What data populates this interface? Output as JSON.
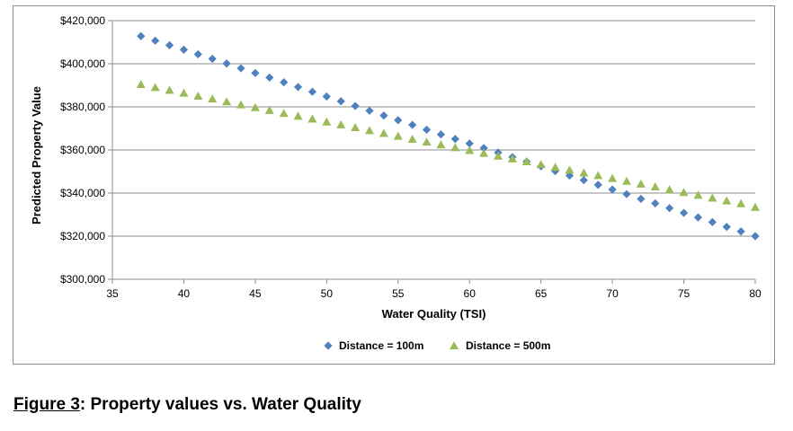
{
  "chart_data": {
    "type": "scatter",
    "title": "",
    "xlabel": "Water Quality (TSI)",
    "ylabel": "Predicted Property Value",
    "xlim": [
      35,
      80
    ],
    "ylim": [
      300000,
      420000
    ],
    "x_ticks": [
      "35",
      "40",
      "45",
      "50",
      "55",
      "60",
      "65",
      "70",
      "75",
      "80"
    ],
    "y_ticks": [
      "$300,000",
      "$320,000",
      "$340,000",
      "$360,000",
      "$380,000",
      "$400,000",
      "$420,000"
    ],
    "grid": "horizontal",
    "legend_position": "bottom",
    "x": [
      37,
      38,
      39,
      40,
      41,
      42,
      43,
      44,
      45,
      46,
      47,
      48,
      49,
      50,
      51,
      52,
      53,
      54,
      55,
      56,
      57,
      58,
      59,
      60,
      61,
      62,
      63,
      64,
      65,
      66,
      67,
      68,
      69,
      70,
      71,
      72,
      73,
      74,
      75,
      76,
      77,
      78,
      79,
      80
    ],
    "series": [
      {
        "name": "Distance = 100m",
        "marker": "diamond",
        "color": "#4f81bd",
        "values": [
          412800,
          410700,
          408600,
          406500,
          404400,
          402300,
          400100,
          397900,
          395700,
          393600,
          391400,
          389200,
          387000,
          384800,
          382600,
          380400,
          378200,
          376000,
          373800,
          371600,
          369400,
          367200,
          365100,
          363000,
          360900,
          358800,
          356700,
          354600,
          352400,
          350200,
          348100,
          346000,
          343800,
          341600,
          339500,
          337300,
          335200,
          333000,
          330800,
          328700,
          326500,
          324300,
          322200,
          320000
        ]
      },
      {
        "name": "Distance = 500m",
        "marker": "triangle",
        "color": "#9bbb59",
        "values": [
          390400,
          389000,
          387700,
          386400,
          385000,
          383700,
          382400,
          381000,
          379700,
          378400,
          377000,
          375700,
          374400,
          373000,
          371700,
          370400,
          369000,
          367700,
          366400,
          365000,
          363700,
          362400,
          361100,
          359800,
          358500,
          357200,
          355900,
          354600,
          353300,
          352000,
          350700,
          349400,
          348100,
          346800,
          345500,
          344200,
          342900,
          341600,
          340300,
          339000,
          337700,
          336400,
          335100,
          333400
        ]
      }
    ]
  },
  "caption": {
    "label": "Figure 3",
    "text": ": Property values vs. Water Quality"
  }
}
